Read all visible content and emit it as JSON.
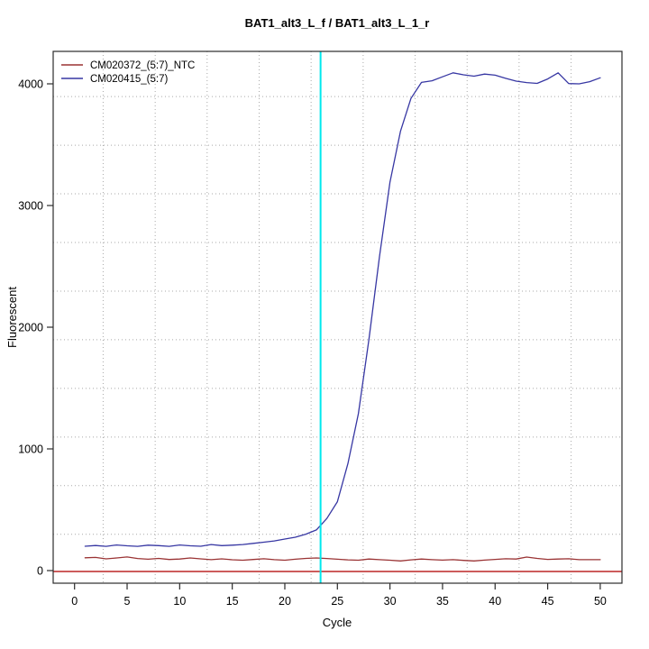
{
  "chart_data": {
    "type": "line",
    "title": "BAT1_alt3_L_f / BAT1_alt3_L_1_r",
    "xlabel": "Cycle",
    "ylabel": "Fluorescent",
    "x_ticks": [
      0,
      5,
      10,
      15,
      20,
      25,
      30,
      35,
      40,
      45,
      50
    ],
    "y_ticks": [
      0,
      1000,
      2000,
      3000,
      4000
    ],
    "xlim": [
      -2,
      52
    ],
    "ylim": [
      -164,
      4264
    ],
    "grid": {
      "on": true,
      "color": "#a9a9a9",
      "x_positions": [
        2.72,
        7.67,
        12.61,
        17.56,
        22.5,
        27.45,
        32.39,
        37.34,
        42.28,
        47.23
      ],
      "y_positions": [
        298,
        698,
        1097,
        1497,
        1897,
        2296,
        2696,
        3096,
        3495,
        3895
      ]
    },
    "x": [
      1,
      2,
      3,
      4,
      5,
      6,
      7,
      8,
      9,
      10,
      11,
      12,
      13,
      14,
      15,
      16,
      17,
      18,
      19,
      20,
      21,
      22,
      23,
      24,
      25,
      26,
      27,
      28,
      29,
      30,
      31,
      32,
      33,
      34,
      35,
      36,
      37,
      38,
      39,
      40,
      41,
      42,
      43,
      44,
      45,
      46,
      47,
      48,
      49,
      50
    ],
    "series": [
      {
        "name": "CM020372_(5:7)_NTC",
        "color": "#9a3334",
        "values": [
          105,
          108,
          96,
          104,
          112,
          99,
          93,
          100,
          91,
          95,
          104,
          96,
          90,
          96,
          89,
          85,
          91,
          97,
          90,
          85,
          93,
          100,
          104,
          99,
          93,
          88,
          85,
          95,
          90,
          85,
          79,
          88,
          95,
          90,
          86,
          90,
          84,
          79,
          86,
          92,
          97,
          95,
          111,
          100,
          92,
          95,
          97,
          90,
          90,
          90
        ]
      },
      {
        "name": "CM020415_(5:7)",
        "color": "#3737a3",
        "values": [
          200,
          206,
          199,
          210,
          204,
          199,
          209,
          205,
          199,
          210,
          204,
          200,
          214,
          205,
          209,
          214,
          224,
          233,
          244,
          259,
          274,
          299,
          334,
          428,
          566,
          880,
          1290,
          1900,
          2580,
          3190,
          3610,
          3880,
          4012,
          4025,
          4058,
          4090,
          4074,
          4063,
          4080,
          4071,
          4045,
          4022,
          4010,
          4004,
          4040,
          4090,
          4002,
          4000,
          4018,
          4050
        ]
      }
    ],
    "baseline_marker": {
      "value": 0,
      "color": "#cd5c5c"
    },
    "threshold_cycle_marker": {
      "cycle": 23.4,
      "color": "#00e8ee"
    },
    "legend": {
      "position": "top-left",
      "entries": [
        "CM020372_(5:7)_NTC",
        "CM020415_(5:7)"
      ]
    },
    "axis_color": "#2b2b2b"
  }
}
